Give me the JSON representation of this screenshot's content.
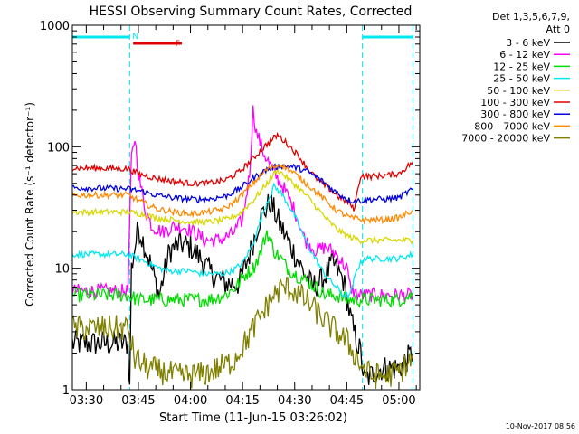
{
  "chart_data": {
    "type": "line",
    "title": "HESSI Observing Summary Count Rates, Corrected",
    "xlabel": "Start Time (11-Jun-15 03:26:02)",
    "ylabel": "Corrected Count Rate (s⁻¹ detector⁻¹)",
    "yscale": "log",
    "ylim": [
      1,
      1000
    ],
    "xlim_minutes": [
      206,
      306
    ],
    "xticks": [
      {
        "m": 210,
        "label": "03:30"
      },
      {
        "m": 225,
        "label": "03:45"
      },
      {
        "m": 240,
        "label": "04:00"
      },
      {
        "m": 255,
        "label": "04:15"
      },
      {
        "m": 270,
        "label": "04:30"
      },
      {
        "m": 285,
        "label": "04:45"
      },
      {
        "m": 300,
        "label": "05:00"
      }
    ],
    "yticks": [
      {
        "v": 1,
        "label": "1"
      },
      {
        "v": 10,
        "label": "10"
      },
      {
        "v": 100,
        "label": "100"
      },
      {
        "v": 1000,
        "label": "1000"
      }
    ],
    "legend_header": [
      "Det 1,3,5,6,7,9,",
      "Att 0"
    ],
    "legend_position": "top-right, outside plot",
    "footer_stamp": "10-Nov-2017 08:56",
    "flags": [
      {
        "label": "N",
        "color": "#00e8f0",
        "intervals": [
          [
            206,
            222.5
          ],
          [
            289.5,
            304
          ]
        ]
      },
      {
        "label": "F",
        "color": "#e00000",
        "intervals": [
          [
            223.5,
            237.5
          ]
        ]
      }
    ],
    "night_bounds": [
      222.5,
      289.5,
      304
    ],
    "series": [
      {
        "name": "3 - 6 keV",
        "color": "#000000",
        "x": [
          206,
          222,
          222.5,
          223,
          225,
          228,
          231,
          234,
          237,
          240,
          243,
          246,
          250,
          254,
          257,
          260,
          263,
          266,
          269,
          272,
          275,
          278,
          281,
          284,
          286,
          287,
          289,
          290,
          295,
          300,
          304
        ],
        "y": [
          2.4,
          2.4,
          1.0,
          10,
          22,
          12,
          6,
          14,
          16,
          15,
          12,
          9,
          7.5,
          7.5,
          13,
          26,
          35,
          22,
          15,
          10,
          7,
          8,
          11,
          8,
          4,
          3,
          2,
          1.2,
          1.5,
          1.5,
          2
        ]
      },
      {
        "name": "6 - 12 keV",
        "color": "#ff00ff",
        "x": [
          206,
          222,
          223,
          224,
          225,
          227,
          229,
          232,
          235,
          238,
          241,
          244,
          248,
          252,
          255,
          257,
          258,
          259,
          260,
          261,
          263,
          265,
          267,
          270,
          273,
          276,
          279,
          282,
          285,
          286,
          288,
          290,
          295,
          300,
          304
        ],
        "y": [
          6.5,
          6.5,
          80,
          120,
          60,
          30,
          22,
          20,
          22,
          22,
          20,
          17,
          17,
          19,
          25,
          60,
          200,
          130,
          110,
          90,
          70,
          55,
          45,
          30,
          17,
          14,
          15,
          13,
          10,
          7,
          6,
          6,
          6,
          6,
          6
        ]
      },
      {
        "name": "12 - 25 keV",
        "color": "#00dd00",
        "x": [
          206,
          222,
          225,
          230,
          235,
          240,
          245,
          250,
          253,
          256,
          258,
          260,
          262,
          264,
          266,
          268,
          270,
          273,
          276,
          279,
          282,
          285,
          288,
          295,
          300,
          304
        ],
        "y": [
          6,
          6,
          5.5,
          5.5,
          5.5,
          5.5,
          5.5,
          6,
          7,
          9,
          10,
          13,
          20,
          14,
          12,
          10,
          9,
          8,
          7,
          6,
          6,
          5.5,
          5.5,
          5.5,
          5.5,
          6
        ]
      },
      {
        "name": "25 - 50 keV",
        "color": "#00e8f0",
        "x": [
          206,
          222,
          225,
          228,
          231,
          234,
          237,
          240,
          243,
          246,
          249,
          252,
          255,
          258,
          260,
          262,
          264,
          266,
          268,
          270,
          272,
          274,
          276,
          278,
          280,
          282,
          284,
          286,
          288,
          290,
          295,
          300,
          304
        ],
        "y": [
          13,
          13,
          12,
          11,
          10,
          9.5,
          9.5,
          9.5,
          9,
          9,
          9,
          9.5,
          11,
          16,
          24,
          35,
          47,
          42,
          34,
          27,
          20,
          15,
          12,
          9.5,
          8,
          7,
          6,
          6,
          10,
          12,
          12,
          12,
          13
        ]
      },
      {
        "name": "50 - 100 keV",
        "color": "#d8d800",
        "x": [
          206,
          222,
          226,
          230,
          235,
          240,
          245,
          250,
          254,
          258,
          262,
          265,
          268,
          271,
          274,
          277,
          280,
          283,
          286,
          289,
          295,
          300,
          304
        ],
        "y": [
          29,
          29,
          28,
          26,
          25,
          24,
          24,
          25,
          28,
          36,
          50,
          65,
          55,
          46,
          38,
          30,
          24,
          20,
          18,
          17,
          17,
          17,
          17
        ]
      },
      {
        "name": "100 - 300 keV",
        "color": "#e00000",
        "x": [
          206,
          222,
          225,
          230,
          235,
          240,
          245,
          250,
          254,
          258,
          262,
          265,
          268,
          271,
          274,
          277,
          280,
          283,
          286,
          287,
          289,
          292,
          296,
          300,
          304
        ],
        "y": [
          67,
          66,
          60,
          55,
          52,
          50,
          50,
          53,
          62,
          80,
          105,
          125,
          105,
          85,
          65,
          52,
          45,
          38,
          34,
          30,
          58,
          57,
          58,
          60,
          75
        ]
      },
      {
        "name": "300 - 800 keV",
        "color": "#0000e0",
        "x": [
          206,
          222,
          226,
          230,
          235,
          240,
          245,
          250,
          254,
          258,
          262,
          266,
          270,
          274,
          278,
          282,
          286,
          289,
          292,
          296,
          300,
          304
        ],
        "y": [
          46,
          45,
          43,
          40,
          38,
          37,
          37,
          39,
          45,
          55,
          65,
          70,
          68,
          62,
          52,
          42,
          36,
          36,
          37,
          37,
          38,
          45
        ]
      },
      {
        "name": "800 - 7000 keV",
        "color": "#ff8800",
        "x": [
          206,
          222,
          226,
          230,
          235,
          240,
          245,
          250,
          254,
          258,
          262,
          266,
          270,
          274,
          278,
          282,
          286,
          290,
          295,
          300,
          304
        ],
        "y": [
          40,
          40,
          35,
          31,
          29,
          28,
          29,
          31,
          38,
          50,
          65,
          72,
          60,
          48,
          38,
          30,
          26,
          25,
          25,
          26,
          30
        ]
      },
      {
        "name": "7000 - 20000 keV",
        "color": "#808000",
        "x": [
          206,
          222,
          224,
          228,
          232,
          236,
          240,
          244,
          248,
          252,
          256,
          260,
          264,
          267,
          270,
          273,
          276,
          279,
          282,
          285,
          287,
          289,
          292,
          296,
          300,
          304
        ],
        "y": [
          3.2,
          3.2,
          1.8,
          1.5,
          1.4,
          1.3,
          1.3,
          1.35,
          1.5,
          1.7,
          2.5,
          4,
          6,
          7,
          6.5,
          5.5,
          4.5,
          3.6,
          3,
          2.5,
          2,
          1.6,
          1.3,
          1.3,
          1.4,
          1.8
        ]
      }
    ]
  }
}
